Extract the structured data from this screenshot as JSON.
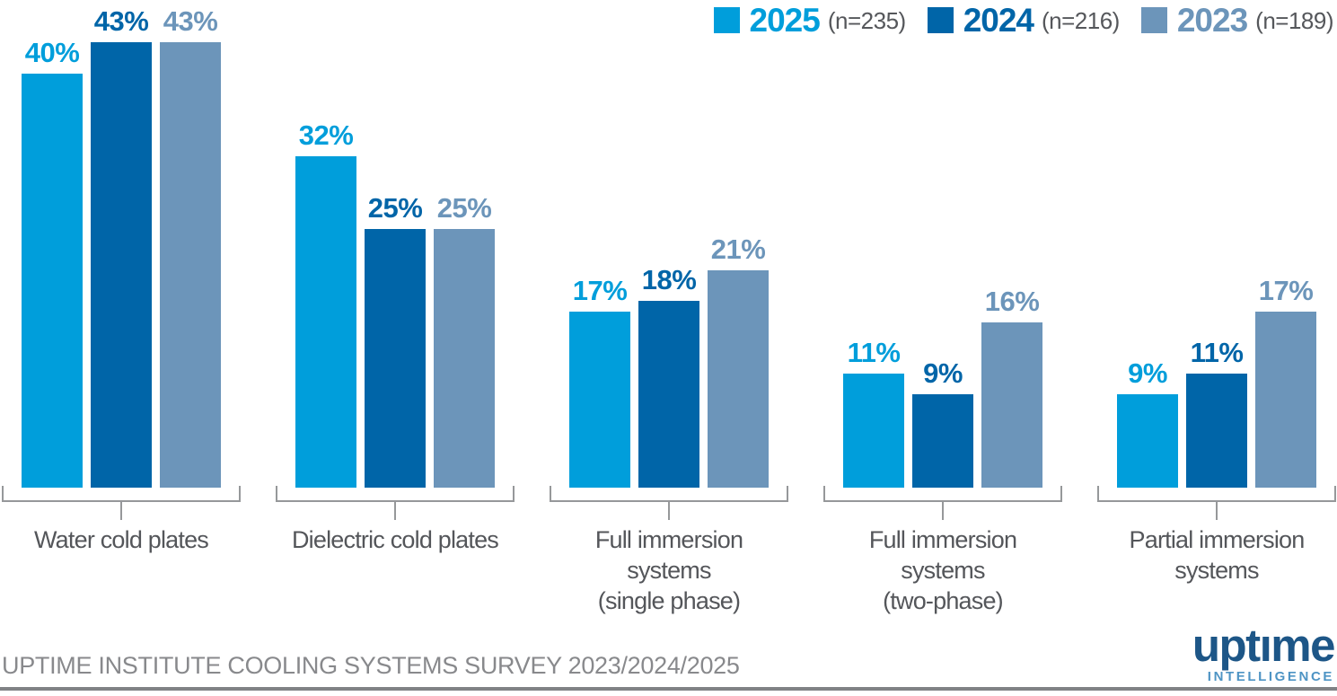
{
  "chart_data": {
    "type": "bar",
    "title": "",
    "xlabel": "",
    "ylabel": "",
    "ylim": [
      0,
      45
    ],
    "grid": false,
    "legend_position": "top-right",
    "value_suffix": "%",
    "categories": [
      "Water cold plates",
      "Dielectric cold plates",
      "Full immersion systems (single phase)",
      "Full immersion systems (two-phase)",
      "Partial immersion systems"
    ],
    "category_lines": [
      [
        "Water cold plates"
      ],
      [
        "Dielectric cold plates"
      ],
      [
        "Full immersion",
        "systems",
        "(single phase)"
      ],
      [
        "Full immersion",
        "systems",
        "(two-phase)"
      ],
      [
        "Partial immersion",
        "systems"
      ]
    ],
    "series": [
      {
        "name": "2025",
        "sample": "(n=235)",
        "color": "#009EDB",
        "values": [
          40,
          32,
          17,
          11,
          9
        ]
      },
      {
        "name": "2024",
        "sample": "(n=216)",
        "color": "#0065A8",
        "values": [
          43,
          25,
          18,
          9,
          11
        ]
      },
      {
        "name": "2023",
        "sample": "(n=189)",
        "color": "#6C95BA",
        "values": [
          43,
          25,
          21,
          16,
          17
        ]
      }
    ]
  },
  "footer": {
    "source_text": "UPTIME INSTITUTE COOLING SYSTEMS SURVEY 2023/2024/2025",
    "logo": {
      "brand": "uptıme",
      "sub": "INTELLIGENCE",
      "brand_color": "#1D5687",
      "sub_color": "#4E94C4"
    }
  },
  "style_colors": {
    "category_label": "#54565A",
    "sample_label": "#55575B",
    "source_text": "#88898C",
    "bracket": "#96989A",
    "bottom_rule": "#808285"
  }
}
